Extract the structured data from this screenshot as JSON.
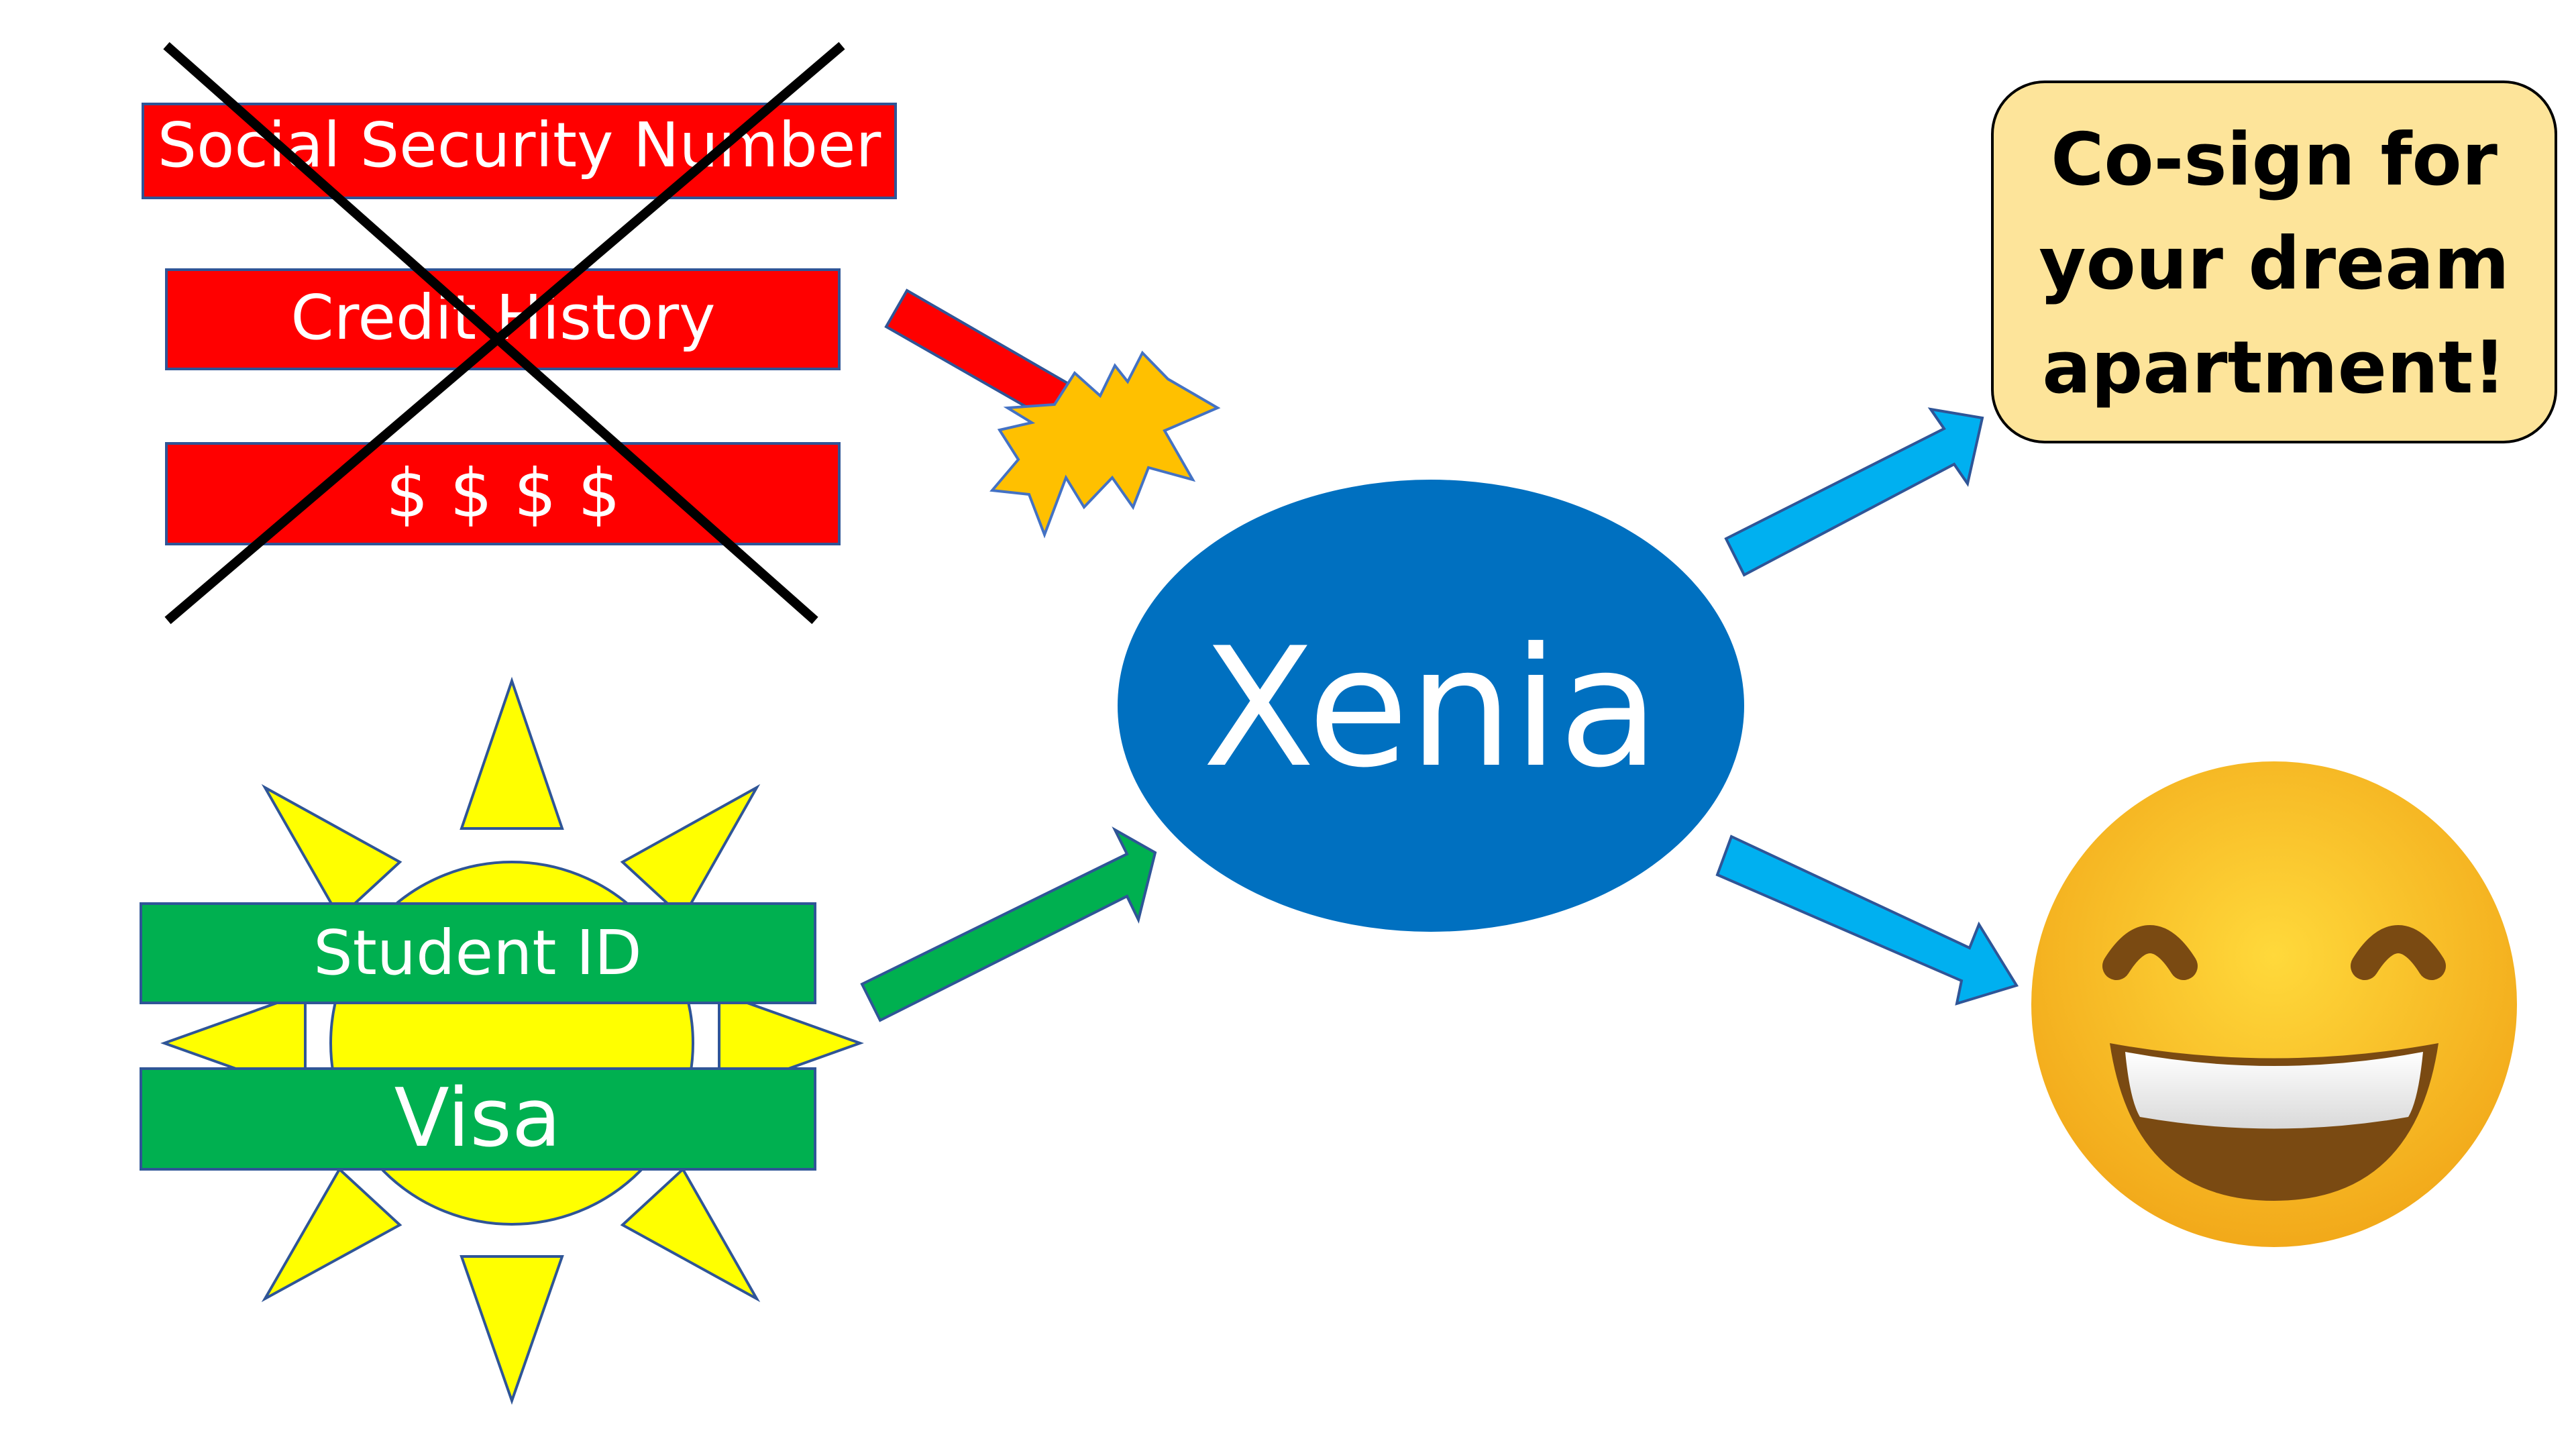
{
  "rejected_items": [
    {
      "label": "Social Security Number"
    },
    {
      "label": "Credit History"
    },
    {
      "label": "$ $ $ $"
    }
  ],
  "accepted_items": [
    {
      "label": "Student ID"
    },
    {
      "label": "Visa"
    }
  ],
  "center": {
    "label": "Xenia"
  },
  "outcome": {
    "text_lines": [
      "Co-sign for",
      "your dream",
      "apartment!"
    ]
  },
  "colors": {
    "rejected_fill": "#ff0000",
    "accepted_fill": "#00b050",
    "center_fill": "#0070c0",
    "outcome_fill": "#fde49a",
    "arrow_blue": "#00b0f0",
    "arrow_green": "#00b050",
    "sun": "#ffff00",
    "burst": "#ffc000",
    "emoji_face": "#fcc21b"
  },
  "icons": {
    "emoji": "grinning-face-with-smiling-eyes-icon",
    "burst": "explosion-burst-icon",
    "sun": "sun-icon",
    "cross": "x-mark-icon"
  }
}
